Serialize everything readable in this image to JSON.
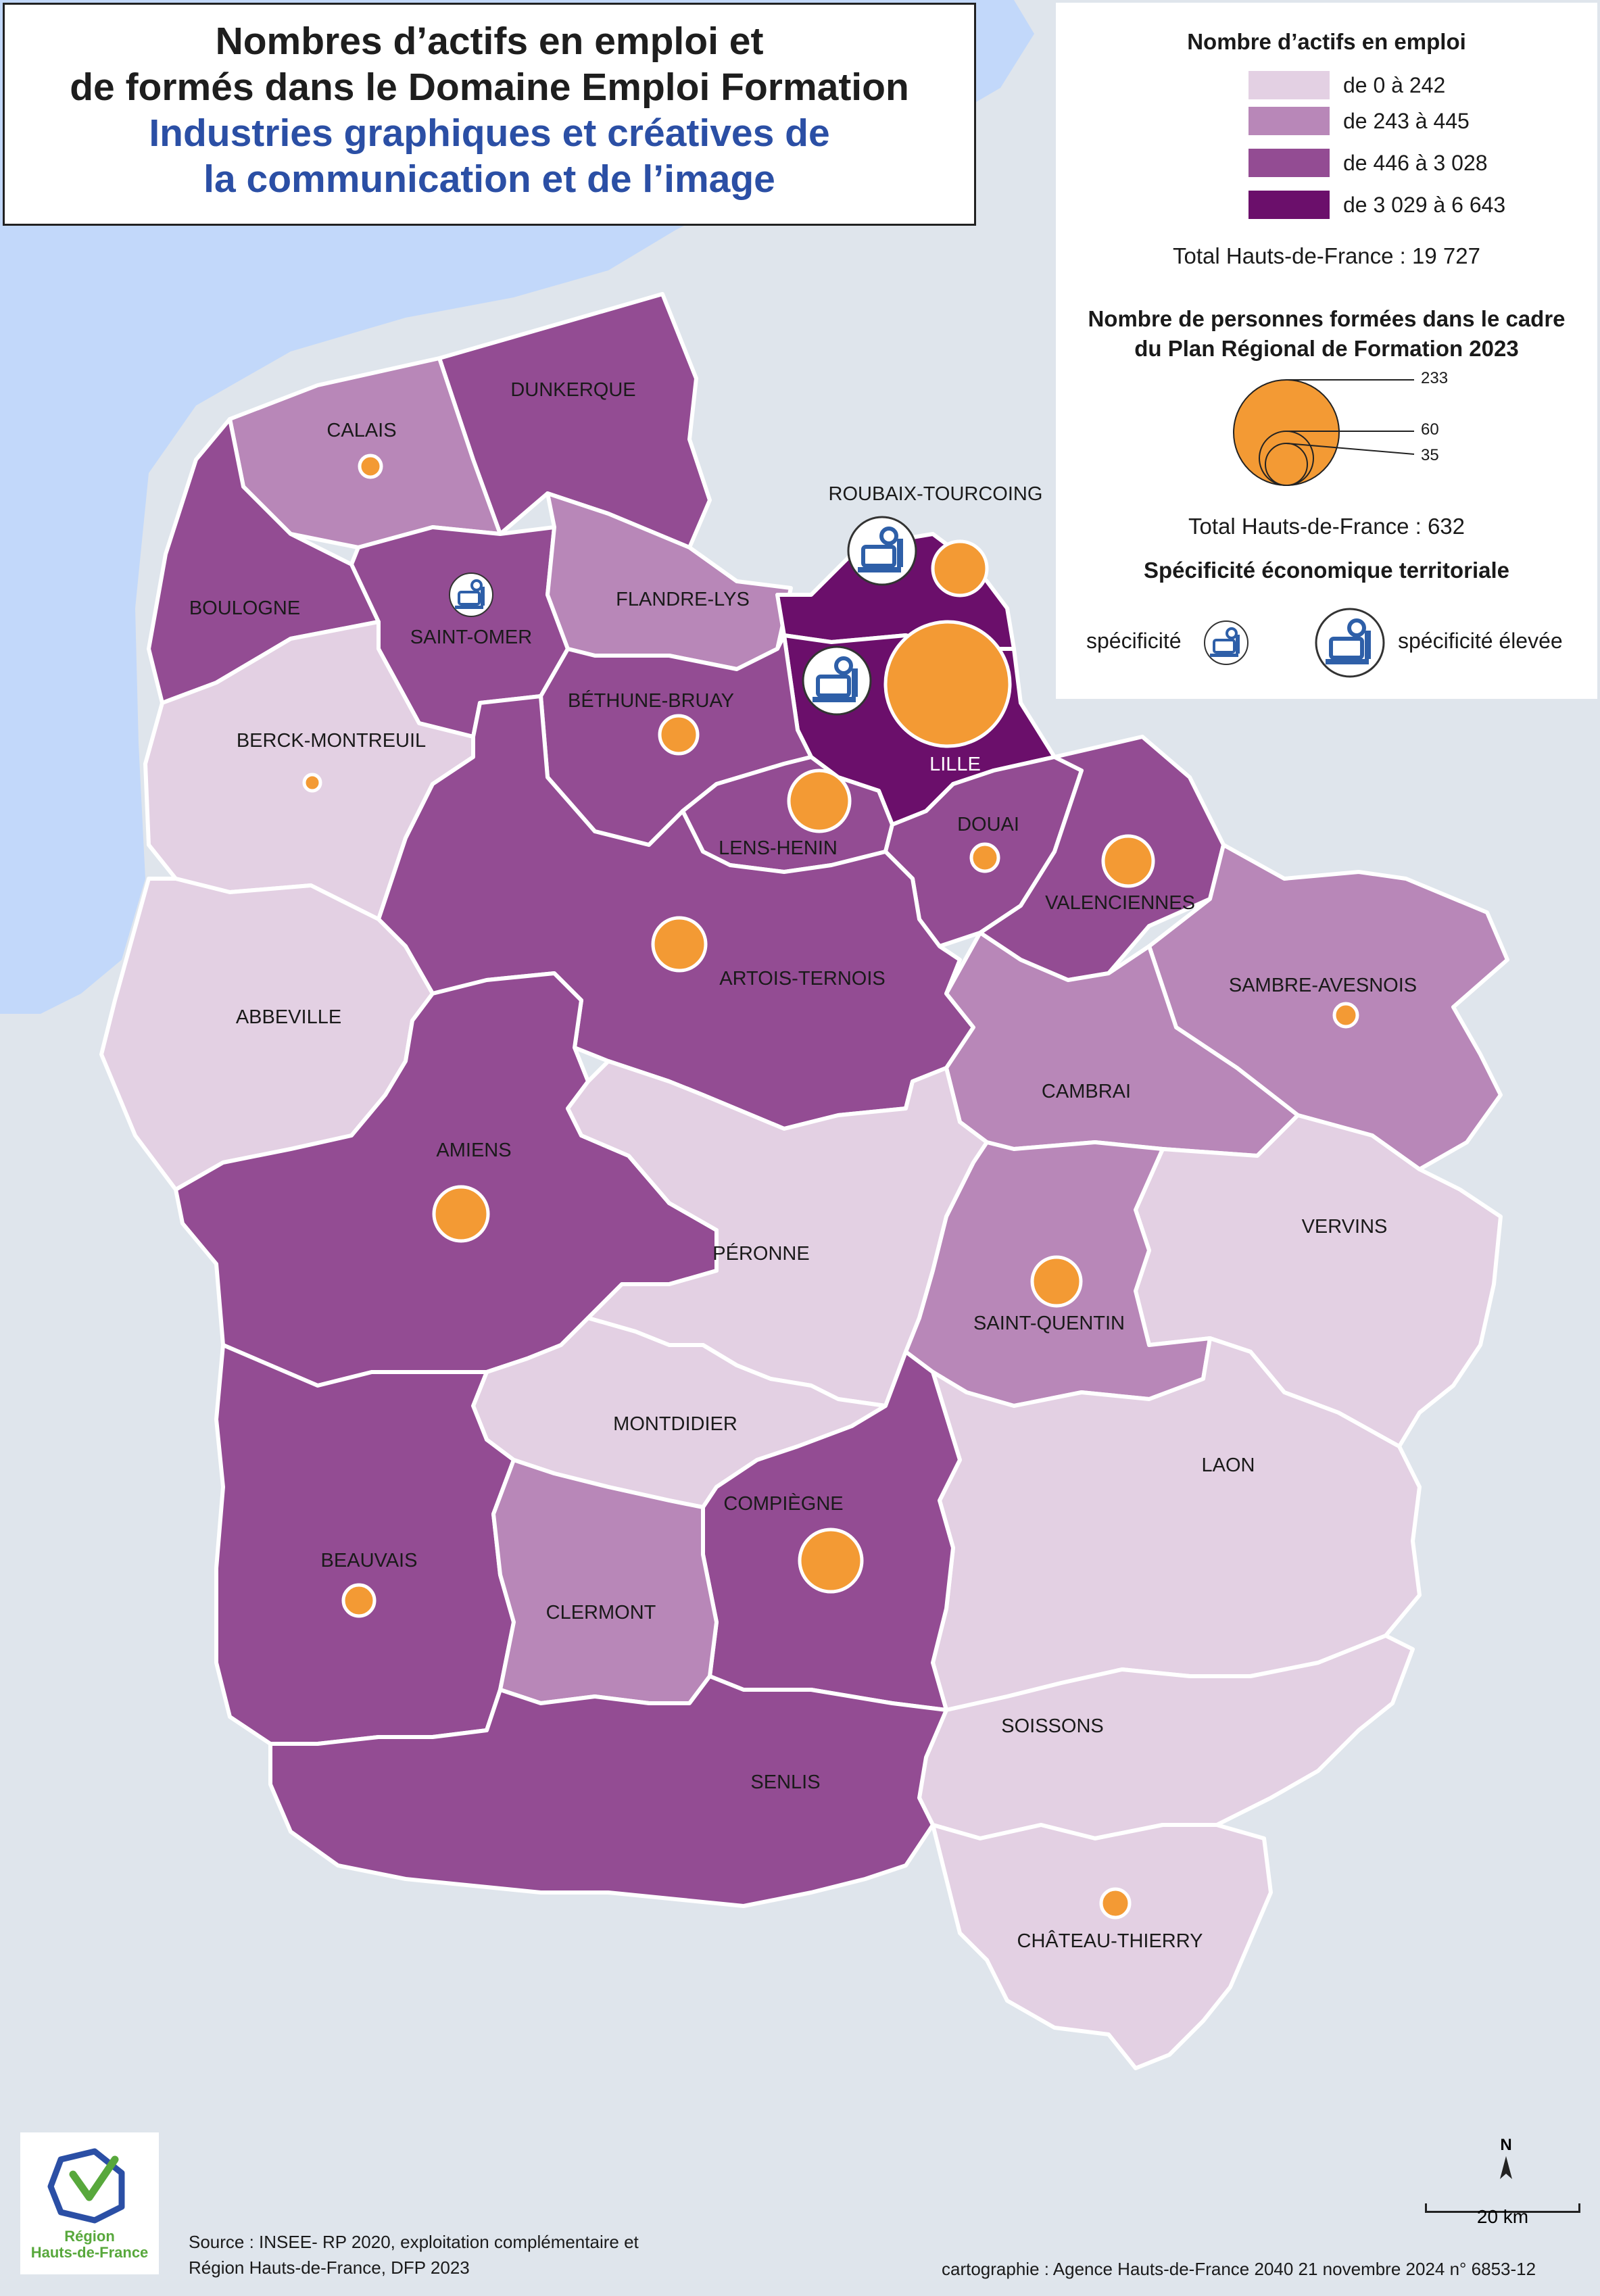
{
  "title": {
    "line1": "Nombres d’actifs en emploi et",
    "line2": "de formés dans le Domaine Emploi Formation",
    "line3": "Industries graphiques et créatives de",
    "line4": "la communication et de l’image"
  },
  "colors": {
    "sea": "#c2d8fa",
    "outside": "#dfe5ec",
    "class_1": "#e3d0e3",
    "class_2": "#b887b8",
    "class_3": "#934c93",
    "class_4": "#6b0f6b",
    "bubble": "#f39a34",
    "icon": "#2e5fa8"
  },
  "legend": {
    "employment_title": "Nombre d’actifs en emploi",
    "classes": [
      {
        "label": "de 0 à 242",
        "color": "#e3d0e3"
      },
      {
        "label": "de 243 à 445",
        "color": "#b887b8"
      },
      {
        "label": "de 446 à 3 028",
        "color": "#934c93"
      },
      {
        "label": "de 3 029 à 6 643",
        "color": "#6b0f6b"
      }
    ],
    "employment_total": "Total Hauts-de-France : 19 727",
    "trained_title_1": "Nombre de personnes formées dans le cadre",
    "trained_title_2": "du Plan Régional de Formation 2023",
    "circle_values": [
      "233",
      "60",
      "35"
    ],
    "trained_total": "Total Hauts-de-France :  632",
    "specificity_title": "Spécificité économique territoriale",
    "specificity_label": "spécificité",
    "specificity_high_label": "spécificité élevée"
  },
  "zones": [
    {
      "name": "DUNKERQUE",
      "class": 3
    },
    {
      "name": "CALAIS",
      "class": 2
    },
    {
      "name": "BOULOGNE",
      "class": 3
    },
    {
      "name": "SAINT-OMER",
      "class": 3
    },
    {
      "name": "FLANDRE-LYS",
      "class": 2
    },
    {
      "name": "ROUBAIX-TOURCOING",
      "class": 4
    },
    {
      "name": "LILLE",
      "class": 4
    },
    {
      "name": "BÉTHUNE-BRUAY",
      "class": 3
    },
    {
      "name": "BERCK-MONTREUIL",
      "class": 1
    },
    {
      "name": "LENS-HENIN",
      "class": 3
    },
    {
      "name": "DOUAI",
      "class": 3
    },
    {
      "name": "VALENCIENNES",
      "class": 3
    },
    {
      "name": "ARTOIS-TERNOIS",
      "class": 3
    },
    {
      "name": "SAMBRE-AVESNOIS",
      "class": 2
    },
    {
      "name": "ABBEVILLE",
      "class": 1
    },
    {
      "name": "CAMBRAI",
      "class": 2
    },
    {
      "name": "AMIENS",
      "class": 3
    },
    {
      "name": "PÉRONNE",
      "class": 1
    },
    {
      "name": "VERVINS",
      "class": 1
    },
    {
      "name": "SAINT-QUENTIN",
      "class": 2
    },
    {
      "name": "MONTDIDIER",
      "class": 1
    },
    {
      "name": "LAON",
      "class": 1
    },
    {
      "name": "COMPIÈGNE",
      "class": 3
    },
    {
      "name": "BEAUVAIS",
      "class": 3
    },
    {
      "name": "CLERMONT",
      "class": 2
    },
    {
      "name": "SOISSONS",
      "class": 1
    },
    {
      "name": "SENLIS",
      "class": 3
    },
    {
      "name": "CHÂTEAU-THIERRY",
      "class": 1
    }
  ],
  "specificity_icons": [
    {
      "zone": "SAINT-OMER",
      "level": "spécificité"
    },
    {
      "zone": "ROUBAIX-TOURCOING",
      "level": "spécificité élevée"
    },
    {
      "zone": "LILLE",
      "level": "spécificité élevée"
    }
  ],
  "source_line1": "Source : INSEE- RP 2020, exploitation complémentaire et",
  "source_line2": "Région Hauts-de-France, DFP 2023",
  "credit": "cartographie : Agence Hauts-de-France 2040  21 novembre 2024   n° 6853-12",
  "logo_line1": "Région",
  "logo_line2": "Hauts-de-France",
  "north_label": "N",
  "scale_label": "20 km"
}
